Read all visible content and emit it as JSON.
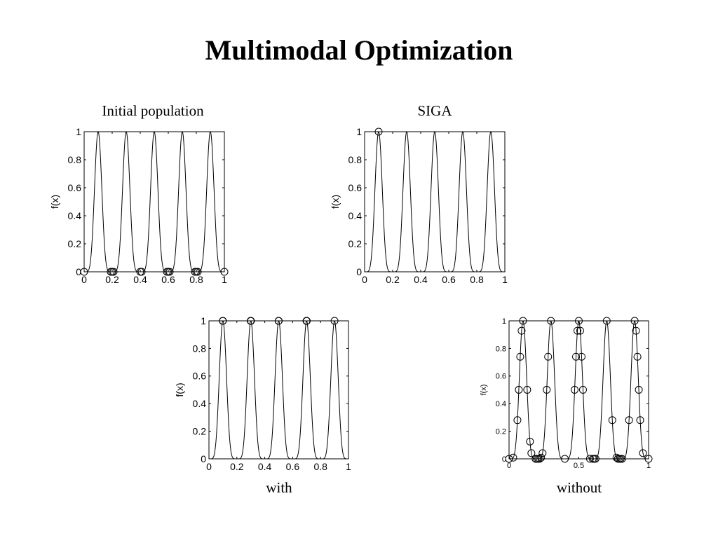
{
  "slide": {
    "title": "Multimodal Optimization"
  },
  "chart_data": [
    {
      "id": "initial",
      "type": "line",
      "title": "Initial population",
      "caption": "",
      "function": "f(x) = sin^6(5*pi*x)",
      "ylabel": "f(x)",
      "xlabel": "",
      "xlim": [
        0,
        1
      ],
      "ylim": [
        0,
        1
      ],
      "xticks": [
        0,
        0.2,
        0.4,
        0.6,
        0.8,
        1
      ],
      "xtick_labels": [
        "0",
        "0.2",
        "0.4",
        "0.6",
        "0.8",
        "1"
      ],
      "yticks": [
        0,
        0.2,
        0.4,
        0.6,
        0.8,
        1
      ],
      "ytick_labels": [
        "0",
        "0.2",
        "0.4",
        "0.6",
        "0.8",
        "1"
      ],
      "grid": false,
      "population_x": [
        0,
        0.19,
        0.2,
        0.21,
        0.4,
        0.41,
        0.59,
        0.6,
        0.61,
        0.79,
        0.8,
        0.81,
        1.0
      ]
    },
    {
      "id": "siga",
      "type": "line",
      "title": "SIGA",
      "caption": "",
      "function": "f(x) = sin^6(5*pi*x)",
      "ylabel": "f(x)",
      "xlabel": "",
      "xlim": [
        0,
        1
      ],
      "ylim": [
        0,
        1
      ],
      "xticks": [
        0,
        0.2,
        0.4,
        0.6,
        0.8,
        1
      ],
      "xtick_labels": [
        "0",
        "0.2",
        "0.4",
        "0.6",
        "0.8",
        "1"
      ],
      "yticks": [
        0,
        0.2,
        0.4,
        0.6,
        0.8,
        1
      ],
      "ytick_labels": [
        "0",
        "0.2",
        "0.4",
        "0.6",
        "0.8",
        "1"
      ],
      "grid": false,
      "population_x": [
        0.1
      ]
    },
    {
      "id": "with",
      "type": "line",
      "title": "",
      "caption": "with",
      "function": "f(x) = sin^6(5*pi*x)",
      "ylabel": "f(x)",
      "xlabel": "",
      "xlim": [
        0,
        1
      ],
      "ylim": [
        0,
        1
      ],
      "xticks": [
        0,
        0.2,
        0.4,
        0.6,
        0.8,
        1
      ],
      "xtick_labels": [
        "0",
        "0.2",
        "0.4",
        "0.6",
        "0.8",
        "1"
      ],
      "yticks": [
        0,
        0.2,
        0.4,
        0.6,
        0.8,
        1
      ],
      "ytick_labels": [
        "0",
        "0.2",
        "0.4",
        "0.6",
        "0.8",
        "1"
      ],
      "grid": false,
      "population_x": [
        0.1,
        0.099,
        0.3,
        0.299,
        0.301,
        0.5,
        0.499,
        0.7,
        0.699,
        0.701,
        0.9
      ]
    },
    {
      "id": "without",
      "type": "line",
      "title": "",
      "caption": "without",
      "function": "f(x) = sin^6(5*pi*x)",
      "ylabel": "f(x)",
      "xlabel": "",
      "xlim": [
        0,
        1
      ],
      "ylim": [
        0,
        1
      ],
      "xticks": [
        0,
        0.5,
        1
      ],
      "xtick_labels": [
        "0",
        "0.5",
        "1"
      ],
      "yticks": [
        0,
        0.2,
        0.4,
        0.6,
        0.8,
        1
      ],
      "ytick_labels": [
        "0",
        "0.2",
        "0.4",
        "0.6",
        "0.8",
        "1"
      ],
      "grid": false,
      "population_x": [
        0.0,
        0.03,
        0.06,
        0.07,
        0.08,
        0.09,
        0.1,
        0.13,
        0.15,
        0.16,
        0.19,
        0.2,
        0.21,
        0.22,
        0.23,
        0.24,
        0.27,
        0.28,
        0.3,
        0.4,
        0.47,
        0.48,
        0.49,
        0.5,
        0.51,
        0.52,
        0.53,
        0.58,
        0.6,
        0.61,
        0.62,
        0.7,
        0.74,
        0.77,
        0.78,
        0.79,
        0.8,
        0.81,
        0.86,
        0.9,
        0.91,
        0.92,
        0.93,
        0.94,
        0.96,
        1.0
      ]
    }
  ]
}
